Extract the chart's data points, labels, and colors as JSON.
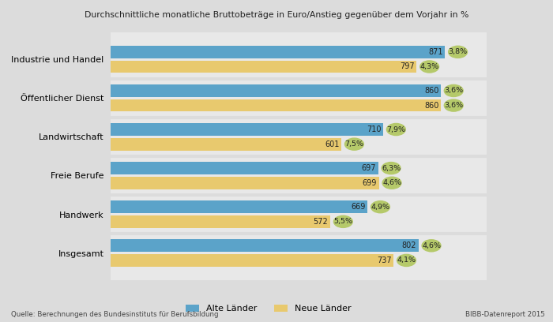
{
  "title": "Durchschnittliche monatliche Bruttobeträge in Euro/Anstieg gegenüber dem Vorjahr in %",
  "categories": [
    "Insgesamt",
    "Handwerk",
    "Freie Berufe",
    "Landwirtschaft",
    "Öffentlicher Dienst",
    "Industrie und Handel"
  ],
  "alte_laender_values": [
    802,
    669,
    697,
    710,
    860,
    871
  ],
  "neue_laender_values": [
    737,
    572,
    699,
    601,
    860,
    797
  ],
  "alte_laender_pct": [
    "4,6%",
    "4,9%",
    "6,3%",
    "7,9%",
    "3,6%",
    "3,8%"
  ],
  "neue_laender_pct": [
    "4,1%",
    "5,5%",
    "4,6%",
    "7,5%",
    "3,6%",
    "4,3%"
  ],
  "alte_laender_color": "#5ba3c9",
  "neue_laender_color": "#e8c96e",
  "pct_bubble_color": "#b5c96a",
  "background_color": "#dcdcdc",
  "plot_bg_color": "#e8e8e8",
  "source_text": "Quelle: Berechnungen des Bundesinstituts für Berufsbildung",
  "bibb_text": "BIBB-Datenreport 2015",
  "legend_alte": "Alte Länder",
  "legend_neue": "Neue Länder",
  "xlim": [
    0,
    980
  ],
  "bar_height": 0.32,
  "bar_gap": 0.06
}
